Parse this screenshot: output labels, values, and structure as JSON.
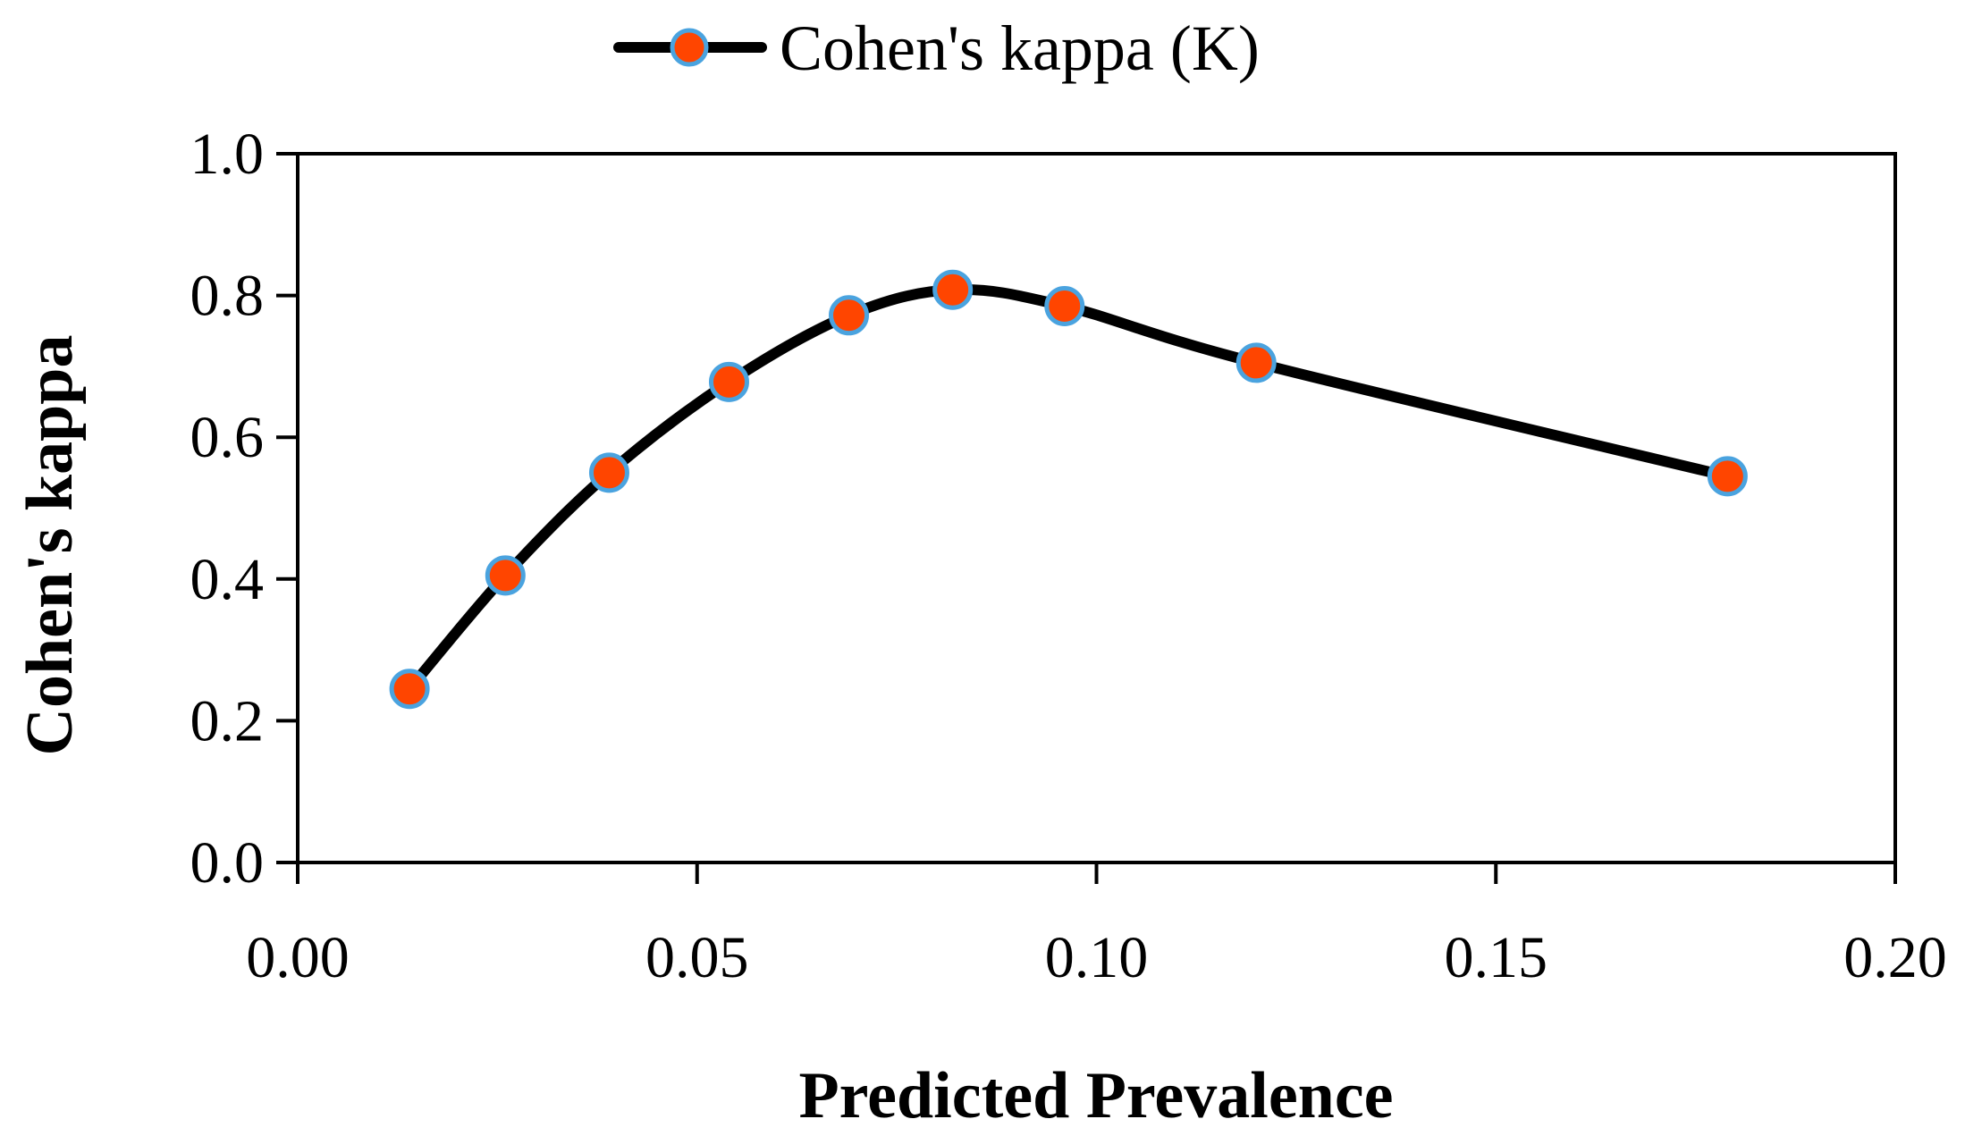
{
  "chart_data": {
    "type": "line",
    "title": "",
    "xlabel": "Predicted Prevalence",
    "ylabel": "Cohen's kappa",
    "xlim": [
      0.0,
      0.2
    ],
    "ylim": [
      0.0,
      1.0
    ],
    "x_ticks": [
      "0.00",
      "0.05",
      "0.10",
      "0.15",
      "0.20"
    ],
    "y_ticks": [
      "0.0",
      "0.2",
      "0.4",
      "0.6",
      "0.8",
      "1.0"
    ],
    "legend_position": "top-center",
    "grid": false,
    "series": [
      {
        "name": "Cohen's kappa (K)",
        "line_color": "#000000",
        "marker_fill": "#ff4500",
        "marker_edge": "#4aa3df",
        "smooth": true,
        "x": [
          0.014,
          0.026,
          0.039,
          0.054,
          0.069,
          0.082,
          0.096,
          0.12,
          0.179
        ],
        "y": [
          0.245,
          0.405,
          0.55,
          0.678,
          0.772,
          0.808,
          0.785,
          0.705,
          0.545
        ]
      }
    ]
  }
}
